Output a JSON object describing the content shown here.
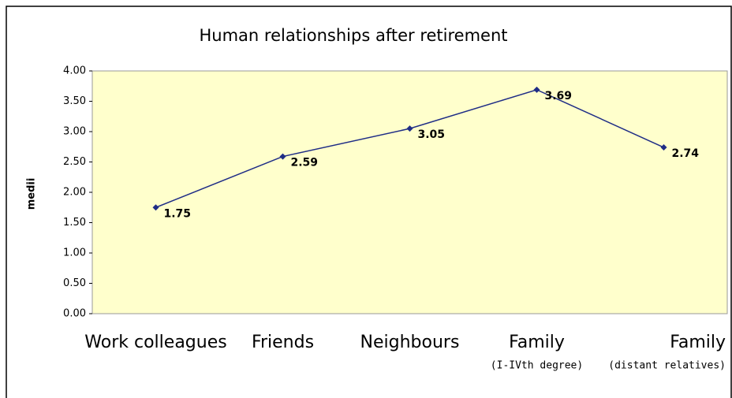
{
  "chart_data": {
    "type": "line",
    "title": "Human relationships after retirement",
    "y_label": "medii",
    "categories": [
      "Work colleagues",
      "Friends",
      "Neighbours",
      [
        "Family",
        "(I-IVth degree)"
      ],
      [
        "Family",
        "(distant relatives)"
      ]
    ],
    "values": [
      1.75,
      2.59,
      3.05,
      3.69,
      2.74
    ],
    "color": "#1f2d86",
    "ylim": [
      0,
      4
    ],
    "yticks": [
      {
        "value": 0,
        "label": "0.00"
      },
      {
        "value": 0.5,
        "label": "0.50"
      },
      {
        "value": 1,
        "label": "1.00"
      },
      {
        "value": 1.5,
        "label": "1.50"
      },
      {
        "value": 2,
        "label": "2.00"
      },
      {
        "value": 2.5,
        "label": "2.50"
      },
      {
        "value": 3,
        "label": "3.00"
      },
      {
        "value": 3.5,
        "label": "3.50"
      },
      {
        "value": 4,
        "label": "4.00"
      }
    ],
    "plot_background": "#ffffcc"
  }
}
